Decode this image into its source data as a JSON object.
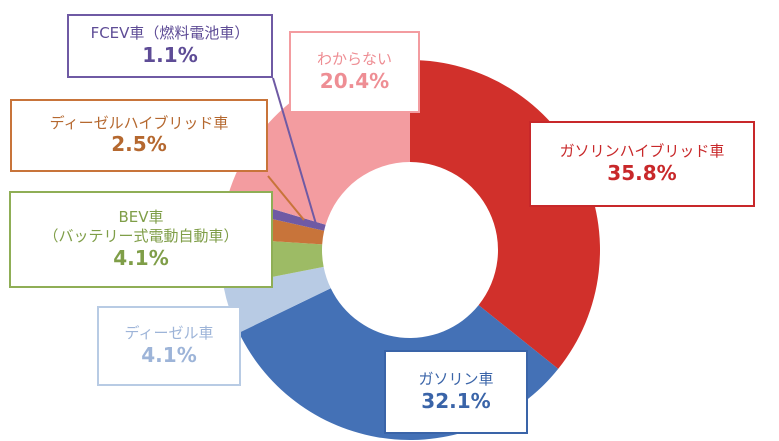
{
  "chart_data": {
    "type": "pie",
    "donut": true,
    "start": "12 o'clock",
    "direction": "clockwise",
    "slices": [
      {
        "label_lines": [
          "ガソリンハイブリッド車"
        ],
        "value": 35.8,
        "display": "35.8%",
        "color": "#d1302b",
        "text_color": "#c8282a",
        "border_color": "#c8282a"
      },
      {
        "label_lines": [
          "ガソリン車"
        ],
        "value": 32.1,
        "display": "32.1%",
        "color": "#4471b6",
        "text_color": "#3a64a8",
        "border_color": "#3a64a8"
      },
      {
        "label_lines": [
          "ディーゼル車"
        ],
        "value": 4.1,
        "display": "4.1%",
        "color": "#b8cbe4",
        "text_color": "#9db4d8",
        "border_color": "#b8cbe4"
      },
      {
        "label_lines": [
          "BEV車",
          "（バッテリー式電動自動車）"
        ],
        "value": 4.1,
        "display": "4.1%",
        "color": "#9dbb65",
        "text_color": "#7f9e48",
        "border_color": "#8fae56"
      },
      {
        "label_lines": [
          "ディーゼルハイブリッド車"
        ],
        "value": 2.5,
        "display": "2.5%",
        "color": "#c8743a",
        "text_color": "#b5682f",
        "border_color": "#c8743a"
      },
      {
        "label_lines": [
          "FCEV車（燃料電池車）"
        ],
        "value": 1.1,
        "display": "1.1%",
        "color": "#6f5aa4",
        "text_color": "#5e4c96",
        "border_color": "#6f5aa4"
      },
      {
        "label_lines": [
          "わからない"
        ],
        "value": 20.4,
        "display": "20.4%",
        "color": "#f39ca0",
        "text_color": "#ee8e94",
        "border_color": "#f39ca0"
      }
    ]
  }
}
